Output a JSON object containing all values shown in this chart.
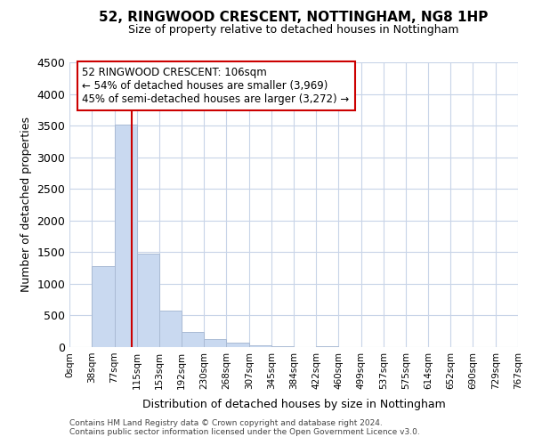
{
  "title": "52, RINGWOOD CRESCENT, NOTTINGHAM, NG8 1HP",
  "subtitle": "Size of property relative to detached houses in Nottingham",
  "xlabel": "Distribution of detached houses by size in Nottingham",
  "ylabel": "Number of detached properties",
  "bar_edges": [
    0,
    38,
    77,
    115,
    153,
    192,
    230,
    268,
    307,
    345,
    384,
    422,
    460,
    499,
    537,
    575,
    614,
    652,
    690,
    729,
    767
  ],
  "bar_heights": [
    0,
    1280,
    3510,
    1480,
    570,
    240,
    130,
    75,
    30,
    10,
    5,
    20,
    0,
    0,
    0,
    0,
    0,
    0,
    0,
    0
  ],
  "bar_color": "#c9d9f0",
  "bar_edgecolor": "#aabbd4",
  "vline_x": 106,
  "vline_color": "#cc0000",
  "ylim": [
    0,
    4500
  ],
  "annotation_line1": "52 RINGWOOD CRESCENT: 106sqm",
  "annotation_line2": "← 54% of detached houses are smaller (3,969)",
  "annotation_line3": "45% of semi-detached houses are larger (3,272) →",
  "footer_line1": "Contains HM Land Registry data © Crown copyright and database right 2024.",
  "footer_line2": "Contains public sector information licensed under the Open Government Licence v3.0.",
  "tick_labels": [
    "0sqm",
    "38sqm",
    "77sqm",
    "115sqm",
    "153sqm",
    "192sqm",
    "230sqm",
    "268sqm",
    "307sqm",
    "345sqm",
    "384sqm",
    "422sqm",
    "460sqm",
    "499sqm",
    "537sqm",
    "575sqm",
    "614sqm",
    "652sqm",
    "690sqm",
    "729sqm",
    "767sqm"
  ],
  "background_color": "#ffffff",
  "grid_color": "#c8d4e8"
}
